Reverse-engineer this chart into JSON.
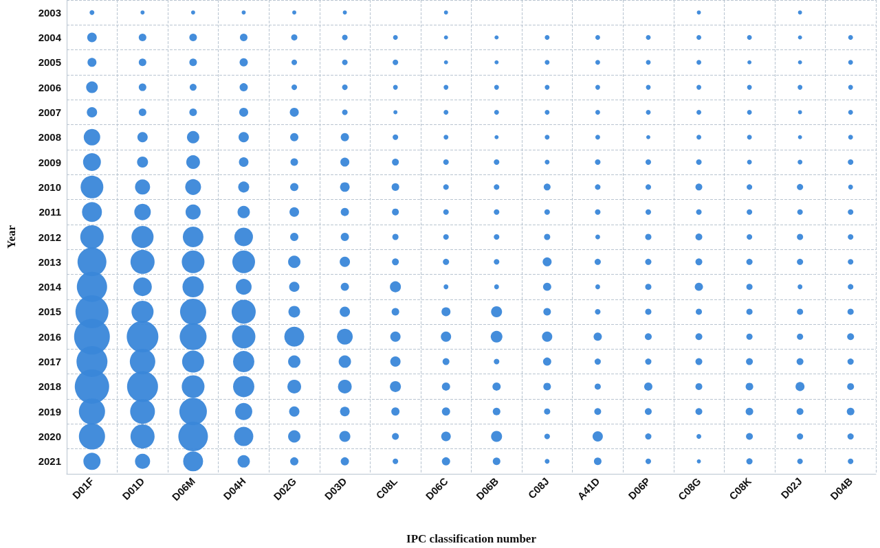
{
  "chart_data": {
    "type": "bubble",
    "xlabel": "IPC classification number",
    "ylabel": "Year",
    "color": "#3a87d9",
    "grid": true,
    "categories": [
      "D01F",
      "D01D",
      "D06M",
      "D04H",
      "D02G",
      "D03D",
      "C08L",
      "D06C",
      "D06B",
      "C08J",
      "A41D",
      "D06P",
      "C08G",
      "C08K",
      "D02J",
      "D04B"
    ],
    "ylim": [
      2021.5,
      2002.5
    ],
    "yticks": [
      2003,
      2004,
      2005,
      2006,
      2007,
      2008,
      2009,
      2010,
      2011,
      2012,
      2013,
      2014,
      2015,
      2016,
      2017,
      2018,
      2019,
      2020,
      2021
    ],
    "series": [
      {
        "values": [
          2003,
          2003,
          2003,
          2003,
          2003,
          2003,
          null,
          2003,
          null,
          null,
          null,
          null,
          2003,
          null,
          2003,
          null
        ],
        "sizes": [
          0.018,
          0.013,
          0.013,
          0.013,
          0.013,
          0.013,
          null,
          0.013,
          null,
          null,
          null,
          null,
          0.013,
          null,
          0.013,
          null
        ]
      },
      {
        "values": [
          2004,
          2004,
          2004,
          2004,
          2004,
          2004,
          2004,
          2004,
          2004,
          2004,
          2004,
          2004,
          2004,
          2004,
          2004,
          2004
        ],
        "sizes": [
          0.072,
          0.045,
          0.045,
          0.045,
          0.03,
          0.024,
          0.018,
          0.013,
          0.013,
          0.018,
          0.018,
          0.018,
          0.018,
          0.018,
          0.013,
          0.018
        ]
      },
      {
        "values": [
          2005,
          2005,
          2005,
          2005,
          2005,
          2005,
          2005,
          2005,
          2005,
          2005,
          2005,
          2005,
          2005,
          2005,
          2005,
          2005
        ],
        "sizes": [
          0.063,
          0.045,
          0.045,
          0.053,
          0.024,
          0.024,
          0.024,
          0.013,
          0.013,
          0.018,
          0.018,
          0.018,
          0.018,
          0.013,
          0.013,
          0.018
        ]
      },
      {
        "values": [
          2006,
          2006,
          2006,
          2006,
          2006,
          2006,
          2006,
          2006,
          2006,
          2006,
          2006,
          2006,
          2006,
          2006,
          2006,
          2006
        ],
        "sizes": [
          0.107,
          0.045,
          0.037,
          0.053,
          0.024,
          0.024,
          0.018,
          0.018,
          0.018,
          0.018,
          0.018,
          0.018,
          0.018,
          0.018,
          0.018,
          0.018
        ]
      },
      {
        "values": [
          2007,
          2007,
          2007,
          2007,
          2007,
          2007,
          2007,
          2007,
          2007,
          2007,
          2007,
          2007,
          2007,
          2007,
          2007,
          2007
        ],
        "sizes": [
          0.083,
          0.045,
          0.045,
          0.063,
          0.063,
          0.024,
          0.013,
          0.018,
          0.018,
          0.018,
          0.018,
          0.018,
          0.018,
          0.018,
          0.013,
          0.018
        ]
      },
      {
        "values": [
          2008,
          2008,
          2008,
          2008,
          2008,
          2008,
          2008,
          2008,
          2008,
          2008,
          2008,
          2008,
          2008,
          2008,
          2008,
          2008
        ],
        "sizes": [
          0.213,
          0.083,
          0.12,
          0.083,
          0.053,
          0.053,
          0.024,
          0.018,
          0.013,
          0.018,
          0.018,
          0.013,
          0.018,
          0.018,
          0.013,
          0.018
        ]
      },
      {
        "values": [
          2009,
          2009,
          2009,
          2009,
          2009,
          2009,
          2009,
          2009,
          2009,
          2009,
          2009,
          2009,
          2009,
          2009,
          2009,
          2009
        ],
        "sizes": [
          0.25,
          0.095,
          0.148,
          0.072,
          0.045,
          0.063,
          0.037,
          0.024,
          0.024,
          0.018,
          0.024,
          0.024,
          0.024,
          0.018,
          0.018,
          0.024
        ]
      },
      {
        "values": [
          2010,
          2010,
          2010,
          2010,
          2010,
          2010,
          2010,
          2010,
          2010,
          2010,
          2010,
          2010,
          2010,
          2010,
          2010,
          2010
        ],
        "sizes": [
          0.403,
          0.179,
          0.196,
          0.095,
          0.053,
          0.072,
          0.045,
          0.024,
          0.024,
          0.037,
          0.024,
          0.024,
          0.037,
          0.024,
          0.03,
          0.018
        ]
      },
      {
        "values": [
          2011,
          2011,
          2011,
          2011,
          2011,
          2011,
          2011,
          2011,
          2011,
          2011,
          2011,
          2011,
          2011,
          2011,
          2011,
          2011
        ],
        "sizes": [
          0.311,
          0.213,
          0.179,
          0.12,
          0.072,
          0.053,
          0.037,
          0.024,
          0.024,
          0.024,
          0.024,
          0.024,
          0.024,
          0.024,
          0.024,
          0.024
        ]
      },
      {
        "values": [
          2012,
          2012,
          2012,
          2012,
          2012,
          2012,
          2012,
          2012,
          2012,
          2012,
          2012,
          2012,
          2012,
          2012,
          2012,
          2012
        ],
        "sizes": [
          0.428,
          0.379,
          0.333,
          0.27,
          0.053,
          0.053,
          0.03,
          0.024,
          0.024,
          0.03,
          0.018,
          0.03,
          0.037,
          0.024,
          0.03,
          0.024
        ]
      },
      {
        "values": [
          2013,
          2013,
          2013,
          2013,
          2013,
          2013,
          2013,
          2013,
          2013,
          2013,
          2013,
          2013,
          2013,
          2013,
          2013,
          2013
        ],
        "sizes": [
          0.652,
          0.453,
          0.403,
          0.403,
          0.12,
          0.083,
          0.037,
          0.03,
          0.024,
          0.063,
          0.03,
          0.03,
          0.037,
          0.03,
          0.03,
          0.024
        ]
      },
      {
        "values": [
          2014,
          2014,
          2014,
          2014,
          2014,
          2014,
          2014,
          2014,
          2014,
          2014,
          2014,
          2014,
          2014,
          2014,
          2014,
          2014
        ],
        "sizes": [
          0.716,
          0.27,
          0.355,
          0.196,
          0.083,
          0.053,
          0.095,
          0.018,
          0.018,
          0.053,
          0.018,
          0.03,
          0.053,
          0.03,
          0.018,
          0.024
        ]
      },
      {
        "values": [
          2015,
          2015,
          2015,
          2015,
          2015,
          2015,
          2015,
          2015,
          2015,
          2015,
          2015,
          2015,
          2015,
          2015,
          2015,
          2015
        ],
        "sizes": [
          0.852,
          0.379,
          0.534,
          0.453,
          0.107,
          0.083,
          0.045,
          0.063,
          0.095,
          0.045,
          0.024,
          0.03,
          0.03,
          0.03,
          0.03,
          0.03
        ]
      },
      {
        "values": [
          2016,
          2016,
          2016,
          2016,
          2016,
          2016,
          2016,
          2016,
          2016,
          2016,
          2016,
          2016,
          2016,
          2016,
          2016,
          2016
        ],
        "sizes": [
          1,
          0.783,
          0.563,
          0.428,
          0.311,
          0.196,
          0.083,
          0.083,
          0.107,
          0.083,
          0.053,
          0.037,
          0.037,
          0.03,
          0.03,
          0.037
        ]
      },
      {
        "values": [
          2017,
          2017,
          2017,
          2017,
          2017,
          2017,
          2017,
          2017,
          2017,
          2017,
          2017,
          2017,
          2017,
          2017,
          2017,
          2017
        ],
        "sizes": [
          0.749,
          0.506,
          0.379,
          0.355,
          0.12,
          0.12,
          0.083,
          0.037,
          0.024,
          0.053,
          0.03,
          0.03,
          0.037,
          0.037,
          0.037,
          0.03
        ]
      },
      {
        "values": [
          2018,
          2018,
          2018,
          2018,
          2018,
          2018,
          2018,
          2018,
          2018,
          2018,
          2018,
          2018,
          2018,
          2018,
          2018,
          2018
        ],
        "sizes": [
          0.925,
          0.749,
          0.403,
          0.355,
          0.148,
          0.148,
          0.095,
          0.053,
          0.053,
          0.045,
          0.03,
          0.053,
          0.037,
          0.045,
          0.063,
          0.037
        ]
      },
      {
        "values": [
          2019,
          2019,
          2019,
          2019,
          2019,
          2019,
          2019,
          2019,
          2019,
          2019,
          2019,
          2019,
          2019,
          2019,
          2019,
          2019
        ],
        "sizes": [
          0.534,
          0.479,
          0.592,
          0.231,
          0.083,
          0.072,
          0.053,
          0.053,
          0.045,
          0.03,
          0.037,
          0.037,
          0.037,
          0.045,
          0.037,
          0.045
        ]
      },
      {
        "values": [
          2020,
          2020,
          2020,
          2020,
          2020,
          2020,
          2020,
          2020,
          2020,
          2020,
          2020,
          2020,
          2020,
          2020,
          2020,
          2020
        ],
        "sizes": [
          0.534,
          0.453,
          0.684,
          0.29,
          0.12,
          0.095,
          0.037,
          0.072,
          0.095,
          0.024,
          0.083,
          0.03,
          0.018,
          0.037,
          0.03,
          0.03
        ]
      },
      {
        "values": [
          2021,
          2021,
          2021,
          2021,
          2021,
          2021,
          2021,
          2021,
          2021,
          2021,
          2021,
          2021,
          2021,
          2021,
          2021,
          2021
        ],
        "sizes": [
          0.231,
          0.179,
          0.311,
          0.12,
          0.053,
          0.053,
          0.024,
          0.053,
          0.045,
          0.018,
          0.045,
          0.024,
          0.013,
          0.03,
          0.024,
          0.024
        ]
      }
    ]
  }
}
